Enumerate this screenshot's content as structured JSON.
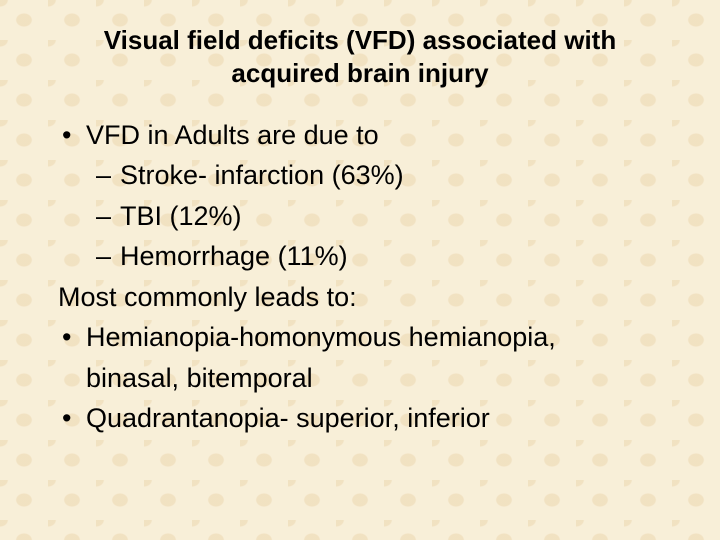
{
  "slide": {
    "title": "Visual field deficits (VFD) associated with acquired brain injury",
    "title_fontsize": 26,
    "title_weight": "700",
    "body_fontsize": 27,
    "background_color": "#f8efd8",
    "pattern_color": "#e6c896",
    "text_color": "#000000",
    "lines": [
      {
        "type": "bullet1",
        "text": "VFD in Adults are due to"
      },
      {
        "type": "bullet2",
        "text": "Stroke- infarction (63%)"
      },
      {
        "type": "bullet2",
        "text": "TBI (12%)"
      },
      {
        "type": "bullet2",
        "text": "Hemorrhage (11%)"
      },
      {
        "type": "plain",
        "text": "Most commonly leads to:"
      },
      {
        "type": "bullet1",
        "text": "Hemianopia-homonymous hemianopia,"
      },
      {
        "type": "wrap1",
        "text": "binasal, bitemporal"
      },
      {
        "type": "bullet1",
        "text": "Quadrantanopia- superior, inferior"
      }
    ]
  }
}
